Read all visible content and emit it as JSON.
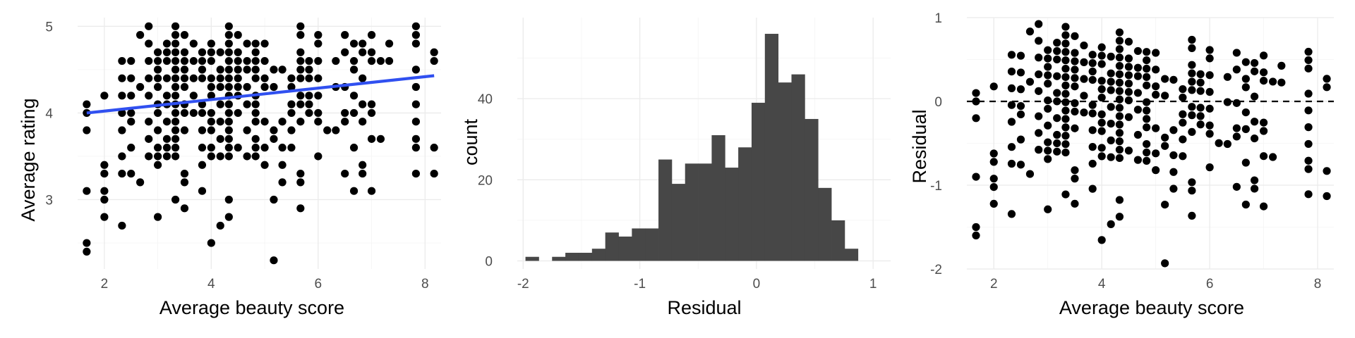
{
  "colors": {
    "points": "#000000",
    "fit_line": "#3050f0",
    "bars": "#474747",
    "zero_line": "#000000"
  },
  "chart_data": [
    {
      "type": "scatter",
      "xlabel": "Average beauty score",
      "ylabel": "Average rating",
      "xlim": [
        1.5,
        8.3
      ],
      "ylim": [
        2.2,
        5.1
      ],
      "x_ticks": [
        2,
        4,
        6,
        8
      ],
      "x_tick_labels": [
        "2",
        "4",
        "6",
        "8"
      ],
      "y_ticks": [
        3,
        4,
        5
      ],
      "y_tick_labels": [
        "3",
        "4",
        "5"
      ],
      "grid": true,
      "fit_line": {
        "x": [
          1.67,
          8.17
        ],
        "y": [
          4.0,
          4.43
        ]
      },
      "points": [
        [
          1.67,
          4.1
        ],
        [
          1.67,
          4.0
        ],
        [
          1.67,
          3.8
        ],
        [
          1.67,
          3.1
        ],
        [
          1.67,
          2.5
        ],
        [
          1.67,
          2.4
        ],
        [
          2.0,
          4.2
        ],
        [
          2.0,
          3.4
        ],
        [
          2.0,
          3.3
        ],
        [
          2.0,
          3.1
        ],
        [
          2.0,
          3.0
        ],
        [
          2.0,
          2.8
        ],
        [
          2.33,
          4.6
        ],
        [
          2.33,
          4.4
        ],
        [
          2.33,
          4.2
        ],
        [
          2.33,
          4.0
        ],
        [
          2.33,
          3.8
        ],
        [
          2.33,
          3.5
        ],
        [
          2.33,
          3.3
        ],
        [
          2.33,
          2.7
        ],
        [
          2.5,
          4.6
        ],
        [
          2.5,
          4.4
        ],
        [
          2.5,
          4.2
        ],
        [
          2.5,
          4.0
        ],
        [
          2.5,
          3.9
        ],
        [
          2.5,
          3.6
        ],
        [
          2.5,
          3.3
        ],
        [
          2.67,
          4.9
        ],
        [
          2.67,
          4.3
        ],
        [
          2.67,
          3.2
        ],
        [
          2.83,
          5.0
        ],
        [
          2.83,
          4.8
        ],
        [
          2.83,
          4.6
        ],
        [
          2.83,
          4.4
        ],
        [
          2.83,
          4.2
        ],
        [
          2.83,
          3.9
        ],
        [
          2.83,
          3.7
        ],
        [
          2.83,
          3.5
        ],
        [
          3.0,
          4.7
        ],
        [
          3.0,
          4.6
        ],
        [
          3.0,
          4.5
        ],
        [
          3.0,
          4.4
        ],
        [
          3.0,
          4.3
        ],
        [
          3.0,
          4.1
        ],
        [
          3.0,
          4.0
        ],
        [
          3.0,
          3.8
        ],
        [
          3.0,
          3.6
        ],
        [
          3.0,
          3.5
        ],
        [
          3.0,
          3.4
        ],
        [
          3.0,
          2.8
        ],
        [
          3.17,
          4.8
        ],
        [
          3.17,
          4.7
        ],
        [
          3.17,
          4.6
        ],
        [
          3.17,
          4.4
        ],
        [
          3.17,
          4.2
        ],
        [
          3.17,
          4.1
        ],
        [
          3.17,
          3.9
        ],
        [
          3.17,
          3.7
        ],
        [
          3.17,
          3.6
        ],
        [
          3.17,
          3.5
        ],
        [
          3.33,
          5.0
        ],
        [
          3.33,
          4.9
        ],
        [
          3.33,
          4.8
        ],
        [
          3.33,
          4.7
        ],
        [
          3.33,
          4.6
        ],
        [
          3.33,
          4.5
        ],
        [
          3.33,
          4.4
        ],
        [
          3.33,
          4.3
        ],
        [
          3.33,
          4.2
        ],
        [
          3.33,
          4.1
        ],
        [
          3.33,
          4.0
        ],
        [
          3.33,
          3.9
        ],
        [
          3.33,
          3.8
        ],
        [
          3.33,
          3.7
        ],
        [
          3.33,
          3.6
        ],
        [
          3.33,
          3.5
        ],
        [
          3.33,
          3.0
        ],
        [
          3.5,
          4.9
        ],
        [
          3.5,
          4.7
        ],
        [
          3.5,
          4.6
        ],
        [
          3.5,
          4.5
        ],
        [
          3.5,
          4.4
        ],
        [
          3.5,
          4.3
        ],
        [
          3.5,
          4.1
        ],
        [
          3.5,
          4.0
        ],
        [
          3.5,
          3.8
        ],
        [
          3.5,
          3.3
        ],
        [
          3.5,
          3.2
        ],
        [
          3.5,
          2.9
        ],
        [
          3.67,
          4.8
        ],
        [
          3.67,
          4.6
        ],
        [
          3.67,
          4.4
        ],
        [
          3.67,
          4.2
        ],
        [
          3.67,
          4.0
        ],
        [
          3.83,
          4.7
        ],
        [
          3.83,
          4.6
        ],
        [
          3.83,
          4.5
        ],
        [
          3.83,
          4.4
        ],
        [
          3.83,
          4.1
        ],
        [
          3.83,
          4.0
        ],
        [
          3.83,
          3.8
        ],
        [
          3.83,
          3.6
        ],
        [
          3.83,
          3.4
        ],
        [
          3.83,
          3.1
        ],
        [
          4.0,
          4.8
        ],
        [
          4.0,
          4.7
        ],
        [
          4.0,
          4.6
        ],
        [
          4.0,
          4.4
        ],
        [
          4.0,
          4.3
        ],
        [
          4.0,
          4.2
        ],
        [
          4.0,
          4.0
        ],
        [
          4.0,
          3.9
        ],
        [
          4.0,
          3.8
        ],
        [
          4.0,
          3.6
        ],
        [
          4.0,
          3.5
        ],
        [
          4.0,
          2.5
        ],
        [
          4.17,
          4.7
        ],
        [
          4.17,
          4.5
        ],
        [
          4.17,
          4.4
        ],
        [
          4.17,
          4.3
        ],
        [
          4.17,
          4.1
        ],
        [
          4.17,
          3.9
        ],
        [
          4.17,
          3.7
        ],
        [
          4.17,
          3.5
        ],
        [
          4.17,
          2.7
        ],
        [
          4.33,
          5.0
        ],
        [
          4.33,
          4.9
        ],
        [
          4.33,
          4.8
        ],
        [
          4.33,
          4.7
        ],
        [
          4.33,
          4.6
        ],
        [
          4.33,
          4.5
        ],
        [
          4.33,
          4.4
        ],
        [
          4.33,
          4.3
        ],
        [
          4.33,
          4.2
        ],
        [
          4.33,
          4.1
        ],
        [
          4.33,
          4.0
        ],
        [
          4.33,
          3.9
        ],
        [
          4.33,
          3.8
        ],
        [
          4.33,
          3.7
        ],
        [
          4.33,
          3.6
        ],
        [
          4.33,
          3.5
        ],
        [
          4.33,
          3.0
        ],
        [
          4.33,
          2.8
        ],
        [
          4.5,
          4.9
        ],
        [
          4.5,
          4.7
        ],
        [
          4.5,
          4.6
        ],
        [
          4.5,
          4.5
        ],
        [
          4.5,
          4.4
        ],
        [
          4.5,
          4.3
        ],
        [
          4.5,
          4.2
        ],
        [
          4.5,
          4.0
        ],
        [
          4.5,
          3.6
        ],
        [
          4.67,
          4.8
        ],
        [
          4.67,
          4.6
        ],
        [
          4.67,
          4.5
        ],
        [
          4.67,
          4.3
        ],
        [
          4.67,
          4.1
        ],
        [
          4.67,
          3.8
        ],
        [
          4.67,
          3.5
        ],
        [
          4.83,
          4.8
        ],
        [
          4.83,
          4.7
        ],
        [
          4.83,
          4.6
        ],
        [
          4.83,
          4.5
        ],
        [
          4.83,
          4.4
        ],
        [
          4.83,
          4.2
        ],
        [
          4.83,
          4.1
        ],
        [
          4.83,
          4.0
        ],
        [
          4.83,
          3.9
        ],
        [
          4.83,
          3.7
        ],
        [
          4.83,
          3.6
        ],
        [
          4.83,
          3.5
        ],
        [
          5.0,
          4.8
        ],
        [
          5.0,
          4.6
        ],
        [
          5.0,
          4.4
        ],
        [
          5.0,
          4.3
        ],
        [
          5.0,
          3.9
        ],
        [
          5.0,
          3.6
        ],
        [
          5.0,
          3.4
        ],
        [
          5.17,
          4.5
        ],
        [
          5.17,
          4.3
        ],
        [
          5.17,
          3.8
        ],
        [
          5.17,
          3.7
        ],
        [
          5.17,
          3.0
        ],
        [
          5.17,
          2.3
        ],
        [
          5.33,
          4.5
        ],
        [
          5.33,
          3.9
        ],
        [
          5.33,
          3.6
        ],
        [
          5.33,
          3.4
        ],
        [
          5.33,
          3.2
        ],
        [
          5.5,
          4.4
        ],
        [
          5.5,
          4.3
        ],
        [
          5.5,
          4.1
        ],
        [
          5.5,
          4.0
        ],
        [
          5.5,
          3.8
        ],
        [
          5.5,
          3.6
        ],
        [
          5.67,
          5.0
        ],
        [
          5.67,
          4.9
        ],
        [
          5.67,
          4.7
        ],
        [
          5.67,
          4.6
        ],
        [
          5.67,
          4.5
        ],
        [
          5.67,
          4.4
        ],
        [
          5.67,
          4.2
        ],
        [
          5.67,
          4.1
        ],
        [
          5.67,
          3.9
        ],
        [
          5.67,
          3.3
        ],
        [
          5.67,
          3.2
        ],
        [
          5.67,
          2.9
        ],
        [
          5.83,
          4.6
        ],
        [
          5.83,
          4.5
        ],
        [
          5.83,
          4.4
        ],
        [
          5.83,
          4.2
        ],
        [
          5.83,
          4.1
        ],
        [
          5.83,
          4.0
        ],
        [
          6.0,
          4.9
        ],
        [
          6.0,
          4.8
        ],
        [
          6.0,
          4.6
        ],
        [
          6.0,
          4.4
        ],
        [
          6.0,
          4.2
        ],
        [
          6.0,
          4.0
        ],
        [
          6.0,
          3.9
        ],
        [
          6.0,
          3.5
        ],
        [
          6.17,
          3.8
        ],
        [
          6.33,
          4.6
        ],
        [
          6.33,
          4.3
        ],
        [
          6.33,
          3.8
        ],
        [
          6.5,
          4.9
        ],
        [
          6.5,
          4.7
        ],
        [
          6.5,
          4.3
        ],
        [
          6.5,
          4.0
        ],
        [
          6.5,
          3.9
        ],
        [
          6.5,
          3.3
        ],
        [
          6.67,
          4.8
        ],
        [
          6.67,
          4.6
        ],
        [
          6.67,
          4.5
        ],
        [
          6.67,
          4.2
        ],
        [
          6.67,
          4.0
        ],
        [
          6.67,
          3.6
        ],
        [
          6.67,
          3.1
        ],
        [
          6.83,
          4.8
        ],
        [
          6.83,
          4.7
        ],
        [
          6.83,
          4.4
        ],
        [
          6.83,
          4.1
        ],
        [
          6.83,
          3.9
        ],
        [
          6.83,
          3.4
        ],
        [
          6.83,
          3.3
        ],
        [
          7.0,
          4.9
        ],
        [
          7.0,
          4.7
        ],
        [
          7.0,
          4.6
        ],
        [
          7.0,
          4.1
        ],
        [
          7.0,
          4.0
        ],
        [
          7.0,
          3.7
        ],
        [
          7.0,
          3.1
        ],
        [
          7.17,
          4.6
        ],
        [
          7.17,
          3.7
        ],
        [
          7.33,
          4.8
        ],
        [
          7.33,
          4.6
        ],
        [
          7.83,
          5.0
        ],
        [
          7.83,
          4.9
        ],
        [
          7.83,
          4.8
        ],
        [
          7.83,
          4.5
        ],
        [
          7.83,
          4.3
        ],
        [
          7.83,
          4.1
        ],
        [
          7.83,
          3.9
        ],
        [
          7.83,
          3.7
        ],
        [
          7.83,
          3.6
        ],
        [
          7.83,
          3.3
        ],
        [
          8.17,
          4.7
        ],
        [
          8.17,
          4.6
        ],
        [
          8.17,
          3.6
        ],
        [
          8.17,
          3.3
        ]
      ]
    },
    {
      "type": "bar",
      "xlabel": "Residual",
      "ylabel": "count",
      "xlim": [
        -2.05,
        1.15
      ],
      "ylim": [
        -2,
        60
      ],
      "x_ticks": [
        -2,
        -1,
        0,
        1
      ],
      "x_tick_labels": [
        "-2",
        "-1",
        "0",
        "1"
      ],
      "y_ticks": [
        0,
        20,
        40
      ],
      "y_tick_labels": [
        "0",
        "20",
        "40"
      ],
      "grid": true,
      "bin_width": 0.114,
      "bin_start": -1.98,
      "values": [
        1,
        0,
        1,
        2,
        2,
        3,
        7,
        6,
        8,
        8,
        25,
        19,
        24,
        24,
        31,
        23,
        28,
        39,
        56,
        44,
        46,
        35,
        18,
        10,
        3
      ]
    },
    {
      "type": "scatter",
      "xlabel": "Average beauty score",
      "ylabel": "Residual",
      "xlim": [
        1.5,
        8.3
      ],
      "ylim": [
        -2.0,
        1.0
      ],
      "x_ticks": [
        2,
        4,
        6,
        8
      ],
      "x_tick_labels": [
        "2",
        "4",
        "6",
        "8"
      ],
      "y_ticks": [
        -2,
        -1,
        0,
        1
      ],
      "y_tick_labels": [
        "-2",
        "-1",
        "0",
        "1"
      ],
      "grid": true,
      "reference_line": {
        "y": 0,
        "style": "dashed"
      },
      "fit": {
        "x0": 1.67,
        "y0": 4.0,
        "slope": 0.0662
      }
    }
  ]
}
